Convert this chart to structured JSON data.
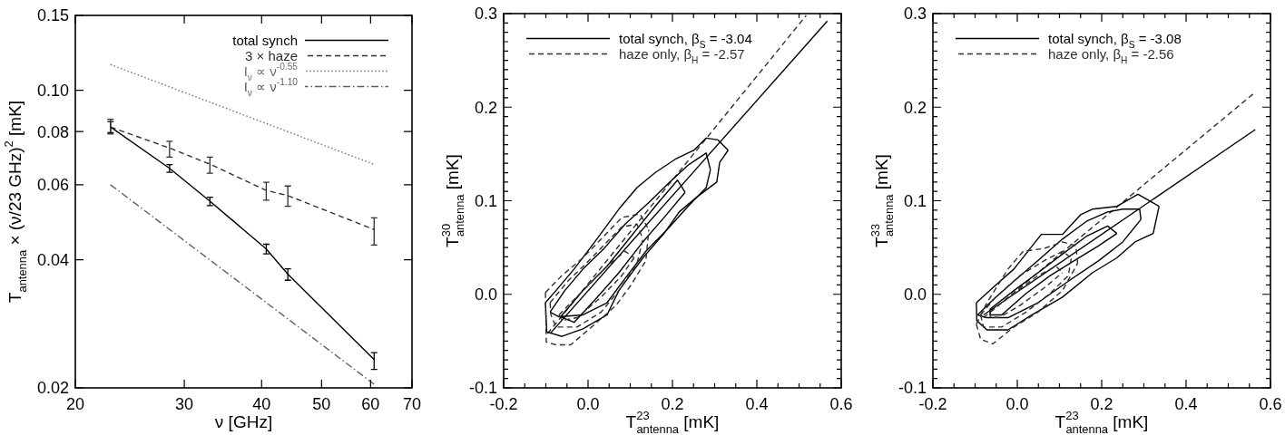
{
  "chart_data": [
    {
      "type": "line",
      "xlabel": "ν [GHz]",
      "ylabel": "T$_{antenna}$ × (ν/23 GHz)$^{2}$ [mK]",
      "log": "xy",
      "xlim": [
        20,
        70
      ],
      "ylim": [
        0.02,
        0.15
      ],
      "xticks": [
        20,
        30,
        40,
        50,
        60,
        70
      ],
      "yticks": [
        0.02,
        0.04,
        0.06,
        0.08,
        {
          "value": 0.1,
          "label": "0.10"
        },
        0.15
      ],
      "legend": "top right",
      "series": [
        {
          "name": "total synch",
          "color": "#000000",
          "line_style": "solid",
          "x": [
            22.8,
            28.4,
            33,
            40.7,
            44.1,
            60.8
          ],
          "values": [
            0.082,
            0.0656,
            0.0549,
            0.0424,
            0.037,
            0.0233
          ],
          "errors": [
            [
              0.0795,
              0.0845
            ],
            [
              0.0642,
              0.0669
            ],
            [
              0.0536,
              0.0561
            ],
            [
              0.0413,
              0.0435
            ],
            [
              0.0358,
              0.0381
            ],
            [
              0.0221,
              0.0242
            ]
          ]
        },
        {
          "name": "3 × haze",
          "color": "#303030",
          "line_style": "dashed",
          "x": [
            22.8,
            28.4,
            33,
            40.7,
            44.1,
            60.8
          ],
          "values": [
            0.082,
            0.0732,
            0.0671,
            0.0582,
            0.0566,
            0.0471
          ],
          "errors": [
            [
              0.079,
              0.0855
            ],
            [
              0.0697,
              0.0759
            ],
            [
              0.0639,
              0.0697
            ],
            [
              0.0552,
              0.0608
            ],
            [
              0.0534,
              0.0596
            ],
            [
              0.0433,
              0.0502
            ]
          ]
        },
        {
          "name": "I$_{ν}$ ∝ ν$^{-0.55}$",
          "color": "#707070",
          "line_style": "dotted",
          "x": [
            22.8,
            60.8
          ],
          "values": [
            0.115,
            0.067
          ]
        },
        {
          "name": "I$_{ν}$ ∝ ν$^{-1.10}$",
          "color": "#606060",
          "line_style": "dashdot",
          "x": [
            22.8,
            60.8
          ],
          "values": [
            0.06,
            0.0204
          ]
        }
      ]
    },
    {
      "type": "line",
      "xlabel": "T$^{23}$$_{antenna}$ [mK]",
      "ylabel": "T$^{30}$$_{antenna}$ [mK]",
      "xlim": [
        -0.2,
        0.6
      ],
      "ylim": [
        -0.1,
        0.3
      ],
      "xticks": [
        -0.2,
        {
          "value": -0.15,
          "label": null
        },
        {
          "value": -0.1,
          "label": null
        },
        {
          "value": -0.05,
          "label": null
        },
        {
          "value": 0,
          "label": "0.0"
        },
        {
          "value": 0.05,
          "label": null
        },
        {
          "value": 0.1,
          "label": null
        },
        {
          "value": 0.15,
          "label": null
        },
        0.2,
        {
          "value": 0.25,
          "label": null
        },
        {
          "value": 0.3,
          "label": null
        },
        {
          "value": 0.35,
          "label": null
        },
        0.4,
        {
          "value": 0.45,
          "label": null
        },
        {
          "value": 0.5,
          "label": null
        },
        {
          "value": 0.55,
          "label": null
        },
        0.6
      ],
      "yticks": [
        -0.1,
        {
          "value": -0.09,
          "label": null
        },
        {
          "value": -0.08,
          "label": null
        },
        {
          "value": -0.07,
          "label": null
        },
        {
          "value": -0.06,
          "label": null
        },
        {
          "value": -0.05,
          "label": null
        },
        {
          "value": -0.04,
          "label": null
        },
        {
          "value": -0.03,
          "label": null
        },
        {
          "value": -0.02,
          "label": null
        },
        {
          "value": -0.01,
          "label": null
        },
        {
          "value": 0,
          "label": "0.0"
        },
        {
          "value": 0.01,
          "label": null
        },
        {
          "value": 0.02,
          "label": null
        },
        {
          "value": 0.03,
          "label": null
        },
        {
          "value": 0.04,
          "label": null
        },
        {
          "value": 0.05,
          "label": null
        },
        {
          "value": 0.06,
          "label": null
        },
        {
          "value": 0.07,
          "label": null
        },
        {
          "value": 0.08,
          "label": null
        },
        {
          "value": 0.09,
          "label": null
        },
        0.1,
        {
          "value": 0.11,
          "label": null
        },
        {
          "value": 0.12,
          "label": null
        },
        {
          "value": 0.13,
          "label": null
        },
        {
          "value": 0.14,
          "label": null
        },
        {
          "value": 0.15,
          "label": null
        },
        {
          "value": 0.16,
          "label": null
        },
        {
          "value": 0.17,
          "label": null
        },
        {
          "value": 0.18,
          "label": null
        },
        {
          "value": 0.19,
          "label": null
        },
        0.2,
        {
          "value": 0.21,
          "label": null
        },
        {
          "value": 0.22,
          "label": null
        },
        {
          "value": 0.23,
          "label": null
        },
        {
          "value": 0.24,
          "label": null
        },
        {
          "value": 0.25,
          "label": null
        },
        {
          "value": 0.26,
          "label": null
        },
        {
          "value": 0.27,
          "label": null
        },
        {
          "value": 0.28,
          "label": null
        },
        {
          "value": 0.29,
          "label": null
        },
        0.3
      ],
      "legend": "top left",
      "series": [
        {
          "name": "total synch, β$_{S}$ = -3.04",
          "color": "#000000",
          "line_style": "solid",
          "x": [
            -0.09,
            0.567
          ],
          "values": [
            -0.042,
            0.292
          ]
        },
        {
          "name": "haze only, β$_{H}$ = -2.57",
          "color": "#303030",
          "line_style": "dashed",
          "x": [
            -0.096,
            0.517
          ],
          "values": [
            -0.042,
            0.298
          ]
        },
        {
          "color": "#000000",
          "line_style": "solid",
          "x": [
            -0.101,
            -0.076,
            -0.033,
            0.016,
            0.073,
            0.116,
            0.159,
            0.209,
            0.251,
            0.28,
            0.308,
            0.332
          ],
          "values": [
            -0.009,
            0.004,
            0.027,
            0.056,
            0.091,
            0.114,
            0.13,
            0.145,
            0.154,
            0.167,
            0.165,
            0.154
          ]
        },
        {
          "color": "#000000",
          "line_style": "solid",
          "x": [
            -0.101,
            -0.098,
            -0.062,
            -0.012,
            0.045,
            0.073,
            0.13,
            0.18,
            0.216,
            0.258,
            0.305,
            0.312,
            0.332
          ],
          "values": [
            -0.009,
            -0.04,
            -0.045,
            -0.037,
            -0.022,
            0.004,
            0.039,
            0.065,
            0.088,
            0.104,
            0.12,
            0.141,
            0.154
          ]
        },
        {
          "color": "#000000",
          "line_style": "solid",
          "x": [
            -0.09,
            -0.055,
            -0.012,
            0.038,
            0.088,
            0.144,
            0.194,
            0.237,
            0.28,
            0.29
          ],
          "values": [
            -0.019,
            0.004,
            0.027,
            0.049,
            0.075,
            0.098,
            0.12,
            0.138,
            0.151,
            0.133
          ]
        },
        {
          "color": "#000000",
          "line_style": "solid",
          "x": [
            -0.09,
            -0.069,
            -0.012,
            0.045,
            0.088,
            0.137,
            0.187,
            0.237,
            0.28,
            0.29
          ],
          "values": [
            -0.019,
            -0.024,
            -0.022,
            -0.009,
            0.017,
            0.046,
            0.069,
            0.094,
            0.114,
            0.133
          ]
        },
        {
          "color": "#000000",
          "line_style": "solid",
          "x": [
            -0.065,
            -0.012,
            0.045,
            0.102,
            0.159,
            0.212,
            0.23
          ],
          "values": [
            -0.024,
            0.004,
            0.03,
            0.062,
            0.094,
            0.122,
            0.109
          ]
        },
        {
          "color": "#000000",
          "line_style": "solid",
          "x": [
            -0.065,
            -0.033,
            0.016,
            0.073,
            0.13,
            0.18,
            0.23
          ],
          "values": [
            -0.024,
            -0.03,
            -0.006,
            0.023,
            0.056,
            0.082,
            0.109
          ]
        },
        {
          "color": "#303030",
          "line_style": "dashed",
          "x": [
            -0.101,
            -0.062,
            -0.012,
            0.031,
            0.08,
            0.123,
            0.144
          ],
          "values": [
            0.002,
            0.02,
            0.039,
            0.059,
            0.082,
            0.086,
            0.069
          ]
        },
        {
          "color": "#303030",
          "line_style": "dashed",
          "x": [
            -0.101,
            -0.099,
            -0.076,
            -0.041,
            0.016,
            0.066,
            0.102,
            0.137,
            0.144
          ],
          "values": [
            0.002,
            -0.051,
            -0.054,
            -0.054,
            -0.032,
            -0.012,
            0.01,
            0.036,
            0.069
          ]
        },
        {
          "color": "#303030",
          "line_style": "dashed",
          "x": [
            -0.09,
            -0.048,
            0.002,
            0.045,
            0.08,
            0.116,
            0.13
          ],
          "values": [
            -0.009,
            0.014,
            0.036,
            0.056,
            0.072,
            0.075,
            0.059
          ]
        },
        {
          "color": "#303030",
          "line_style": "dashed",
          "x": [
            -0.09,
            -0.088,
            -0.076,
            -0.026,
            0.031,
            0.073,
            0.116,
            0.13
          ],
          "values": [
            -0.009,
            -0.022,
            -0.035,
            -0.035,
            -0.019,
            0.004,
            0.033,
            0.059
          ]
        },
        {
          "color": "#303030",
          "line_style": "dashed",
          "x": [
            -0.069,
            -0.012,
            0.045,
            0.088,
            0.109
          ],
          "values": [
            -0.022,
            0.004,
            0.03,
            0.046,
            0.039
          ]
        },
        {
          "color": "#303030",
          "line_style": "dashed",
          "x": [
            -0.069,
            -0.062,
            -0.026,
            0.031,
            0.08,
            0.109
          ],
          "values": [
            -0.022,
            -0.028,
            -0.025,
            -0.003,
            0.02,
            0.039
          ]
        }
      ]
    },
    {
      "type": "line",
      "xlabel": "T$^{23}$$_{antenna}$ [mK]",
      "ylabel": "T$^{33}$$_{antenna}$ [mK]",
      "xlim": [
        -0.2,
        0.6
      ],
      "ylim": [
        -0.1,
        0.3
      ],
      "xticks": [
        -0.2,
        {
          "value": -0.15,
          "label": null
        },
        {
          "value": -0.1,
          "label": null
        },
        {
          "value": -0.05,
          "label": null
        },
        {
          "value": 0,
          "label": "0.0"
        },
        {
          "value": 0.05,
          "label": null
        },
        {
          "value": 0.1,
          "label": null
        },
        {
          "value": 0.15,
          "label": null
        },
        0.2,
        {
          "value": 0.25,
          "label": null
        },
        {
          "value": 0.3,
          "label": null
        },
        {
          "value": 0.35,
          "label": null
        },
        0.4,
        {
          "value": 0.45,
          "label": null
        },
        {
          "value": 0.5,
          "label": null
        },
        {
          "value": 0.55,
          "label": null
        },
        0.6
      ],
      "yticks": [
        -0.1,
        {
          "value": -0.09,
          "label": null
        },
        {
          "value": -0.08,
          "label": null
        },
        {
          "value": -0.07,
          "label": null
        },
        {
          "value": -0.06,
          "label": null
        },
        {
          "value": -0.05,
          "label": null
        },
        {
          "value": -0.04,
          "label": null
        },
        {
          "value": -0.03,
          "label": null
        },
        {
          "value": -0.02,
          "label": null
        },
        {
          "value": -0.01,
          "label": null
        },
        {
          "value": 0,
          "label": "0.0"
        },
        {
          "value": 0.01,
          "label": null
        },
        {
          "value": 0.02,
          "label": null
        },
        {
          "value": 0.03,
          "label": null
        },
        {
          "value": 0.04,
          "label": null
        },
        {
          "value": 0.05,
          "label": null
        },
        {
          "value": 0.06,
          "label": null
        },
        {
          "value": 0.07,
          "label": null
        },
        {
          "value": 0.08,
          "label": null
        },
        {
          "value": 0.09,
          "label": null
        },
        0.1,
        {
          "value": 0.11,
          "label": null
        },
        {
          "value": 0.12,
          "label": null
        },
        {
          "value": 0.13,
          "label": null
        },
        {
          "value": 0.14,
          "label": null
        },
        {
          "value": 0.15,
          "label": null
        },
        {
          "value": 0.16,
          "label": null
        },
        {
          "value": 0.17,
          "label": null
        },
        {
          "value": 0.18,
          "label": null
        },
        {
          "value": 0.19,
          "label": null
        },
        0.2,
        {
          "value": 0.21,
          "label": null
        },
        {
          "value": 0.22,
          "label": null
        },
        {
          "value": 0.23,
          "label": null
        },
        {
          "value": 0.24,
          "label": null
        },
        {
          "value": 0.25,
          "label": null
        },
        {
          "value": 0.26,
          "label": null
        },
        {
          "value": 0.27,
          "label": null
        },
        {
          "value": 0.28,
          "label": null
        },
        {
          "value": 0.29,
          "label": null
        },
        0.3
      ],
      "legend": "top left",
      "series": [
        {
          "name": "total synch, β$_{S}$ = -3.08",
          "color": "#000000",
          "line_style": "solid",
          "x": [
            -0.08,
            0.564
          ],
          "values": [
            -0.022,
            0.176
          ]
        },
        {
          "name": "haze only, β$_{H}$ = -2.56",
          "color": "#303030",
          "line_style": "dashed",
          "x": [
            -0.08,
            0.564
          ],
          "values": [
            -0.025,
            0.216
          ]
        },
        {
          "color": "#000000",
          "line_style": "solid",
          "x": [
            -0.097,
            -0.058,
            -0.008,
            0.057,
            0.107,
            0.15,
            0.178,
            0.236,
            0.286,
            0.336
          ],
          "values": [
            -0.009,
            0.007,
            0.027,
            0.064,
            0.064,
            0.085,
            0.091,
            0.094,
            0.107,
            0.094
          ]
        },
        {
          "color": "#000000",
          "line_style": "solid",
          "x": [
            -0.097,
            -0.096,
            -0.072,
            -0.022,
            0.035,
            0.107,
            0.178,
            0.236,
            0.279,
            0.322,
            0.336
          ],
          "values": [
            -0.009,
            -0.028,
            -0.038,
            -0.038,
            -0.022,
            -0.003,
            0.023,
            0.039,
            0.056,
            0.065,
            0.094
          ]
        },
        {
          "color": "#000000",
          "line_style": "solid",
          "x": [
            -0.094,
            -0.058,
            -0.008,
            0.049,
            0.107,
            0.164,
            0.214,
            0.25,
            0.29,
            0.293
          ],
          "values": [
            -0.022,
            -0.006,
            0.014,
            0.036,
            0.059,
            0.078,
            0.088,
            0.091,
            0.091,
            0.08
          ]
        },
        {
          "color": "#000000",
          "line_style": "solid",
          "x": [
            -0.094,
            -0.072,
            -0.022,
            0.049,
            0.121,
            0.193,
            0.25,
            0.293
          ],
          "values": [
            -0.022,
            -0.025,
            -0.025,
            -0.009,
            0.014,
            0.036,
            0.056,
            0.08
          ]
        },
        {
          "color": "#000000",
          "line_style": "solid",
          "x": [
            -0.065,
            -0.008,
            0.049,
            0.107,
            0.164,
            0.214,
            0.236
          ],
          "values": [
            -0.016,
            0.004,
            0.023,
            0.043,
            0.062,
            0.073,
            0.065
          ]
        },
        {
          "color": "#000000",
          "line_style": "solid",
          "x": [
            -0.065,
            -0.064,
            -0.037,
            0.021,
            0.078,
            0.135,
            0.193,
            0.236
          ],
          "values": [
            -0.016,
            -0.022,
            -0.022,
            0.001,
            0.02,
            0.036,
            0.052,
            0.065
          ]
        },
        {
          "color": "#303030",
          "line_style": "dashed",
          "x": [
            -0.097,
            -0.072,
            -0.022,
            0.014,
            0.064,
            0.107,
            0.139,
            0.143
          ],
          "values": [
            -0.032,
            -0.009,
            0.027,
            0.046,
            0.049,
            0.056,
            0.052,
            0.033
          ]
        },
        {
          "color": "#303030",
          "line_style": "dashed",
          "x": [
            -0.097,
            -0.087,
            -0.058,
            -0.008,
            0.049,
            0.107,
            0.143
          ],
          "values": [
            -0.032,
            -0.048,
            -0.053,
            -0.035,
            -0.019,
            0.004,
            0.033
          ]
        },
        {
          "color": "#303030",
          "line_style": "dashed",
          "x": [
            -0.087,
            -0.051,
            0.006,
            0.064,
            0.107,
            0.128
          ],
          "values": [
            -0.022,
            -0.003,
            0.02,
            0.036,
            0.046,
            0.039
          ]
        },
        {
          "color": "#303030",
          "line_style": "dashed",
          "x": [
            -0.087,
            -0.08,
            -0.037,
            0.021,
            0.078,
            0.121,
            0.128
          ],
          "values": [
            -0.022,
            -0.035,
            -0.035,
            -0.019,
            0.001,
            0.02,
            0.039
          ]
        },
        {
          "color": "#303030",
          "line_style": "dashed",
          "x": [
            -0.065,
            -0.008,
            0.049,
            0.092,
            0.107
          ],
          "values": [
            -0.019,
            0.001,
            0.02,
            0.03,
            0.023
          ]
        },
        {
          "color": "#303030",
          "line_style": "dashed",
          "x": [
            -0.065,
            -0.064,
            -0.044,
            0.006,
            0.064,
            0.107
          ],
          "values": [
            -0.019,
            -0.024,
            -0.025,
            -0.012,
            0.007,
            0.023
          ]
        }
      ]
    }
  ]
}
